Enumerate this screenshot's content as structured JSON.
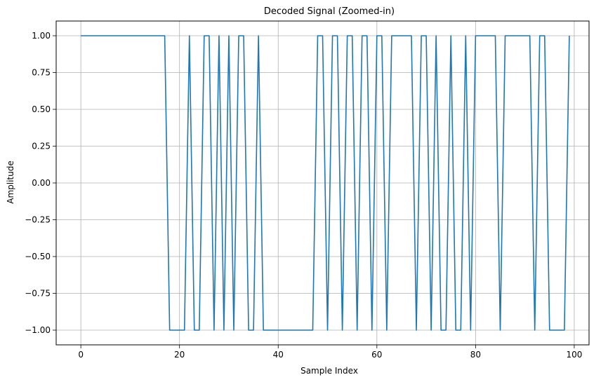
{
  "chart_data": {
    "type": "line",
    "title": "Decoded Signal (Zoomed-in)",
    "xlabel": "Sample Index",
    "ylabel": "Amplitude",
    "xlim": [
      -5,
      103
    ],
    "ylim": [
      -1.1,
      1.1
    ],
    "grid": true,
    "legend": "none",
    "xticks": [
      0,
      20,
      40,
      60,
      80,
      100
    ],
    "xtick_labels": [
      "0",
      "20",
      "40",
      "60",
      "80",
      "100"
    ],
    "yticks": [
      -1.0,
      -0.75,
      -0.5,
      -0.25,
      0.0,
      0.25,
      0.5,
      0.75,
      1.0
    ],
    "ytick_labels": [
      "−1.00",
      "−0.75",
      "−0.50",
      "−0.25",
      "0.00",
      "0.25",
      "0.50",
      "0.75",
      "1.00"
    ],
    "series": [
      {
        "color": "#1f77b4",
        "x": [
          0,
          1,
          2,
          3,
          4,
          5,
          6,
          7,
          8,
          9,
          10,
          11,
          12,
          13,
          14,
          15,
          16,
          17,
          18,
          19,
          20,
          21,
          22,
          23,
          24,
          25,
          26,
          27,
          28,
          29,
          30,
          31,
          32,
          33,
          34,
          35,
          36,
          37,
          38,
          39,
          40,
          41,
          42,
          43,
          44,
          45,
          46,
          47,
          48,
          49,
          50,
          51,
          52,
          53,
          54,
          55,
          56,
          57,
          58,
          59,
          60,
          61,
          62,
          63,
          64,
          65,
          66,
          67,
          68,
          69,
          70,
          71,
          72,
          73,
          74,
          75,
          76,
          77,
          78,
          79,
          80,
          81,
          82,
          83,
          84,
          85,
          86,
          87,
          88,
          89,
          90,
          91,
          92,
          93,
          94,
          95,
          96,
          97,
          98,
          99
        ],
        "values": [
          1,
          1,
          1,
          1,
          1,
          1,
          1,
          1,
          1,
          1,
          1,
          1,
          1,
          1,
          1,
          1,
          1,
          1,
          -1,
          -1,
          -1,
          -1,
          1,
          -1,
          -1,
          1,
          1,
          -1,
          1,
          -1,
          1,
          -1,
          1,
          1,
          -1,
          -1,
          1,
          -1,
          -1,
          -1,
          -1,
          -1,
          -1,
          -1,
          -1,
          -1,
          -1,
          -1,
          1,
          1,
          -1,
          1,
          1,
          -1,
          1,
          1,
          -1,
          1,
          1,
          -1,
          1,
          1,
          -1,
          1,
          1,
          1,
          1,
          1,
          -1,
          1,
          1,
          -1,
          1,
          -1,
          -1,
          1,
          -1,
          -1,
          1,
          -1,
          1,
          1,
          1,
          1,
          1,
          -1,
          1,
          1,
          1,
          1,
          1,
          1,
          -1,
          1,
          1,
          -1,
          -1,
          -1,
          -1,
          1
        ]
      }
    ]
  }
}
